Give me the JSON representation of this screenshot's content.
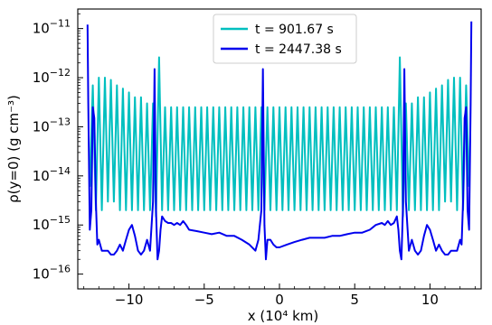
{
  "chart_data": {
    "type": "line",
    "xlabel": "x (10⁴ km)",
    "ylabel": "ρ(y=0) (g cm⁻³)",
    "xlim": [
      -13.4,
      13.4
    ],
    "ylim": [
      5e-17,
      2.5e-11
    ],
    "yscale": "log",
    "grid": false,
    "legend_position": "top-center",
    "x_ticks": [
      {
        "value": -10,
        "label": "−10"
      },
      {
        "value": -5,
        "label": "−5"
      },
      {
        "value": 0,
        "label": "0"
      },
      {
        "value": 5,
        "label": "5"
      },
      {
        "value": 10,
        "label": "10"
      }
    ],
    "y_ticks": [
      {
        "exp": -16,
        "label_base": "10",
        "label_exp": "−16"
      },
      {
        "exp": -15,
        "label_base": "10",
        "label_exp": "−15"
      },
      {
        "exp": -14,
        "label_base": "10",
        "label_exp": "−14"
      },
      {
        "exp": -13,
        "label_base": "10",
        "label_exp": "−13"
      },
      {
        "exp": -12,
        "label_base": "10",
        "label_exp": "−12"
      },
      {
        "exp": -11,
        "label_base": "10",
        "label_exp": "−11"
      }
    ],
    "series": [
      {
        "name": "t = 901.67 s",
        "color": "#00bfbf",
        "kind": "oscillating",
        "x": [
          -12.6,
          -12.4,
          -12.2,
          -12.0,
          -11.8,
          -11.6,
          -11.4,
          -11.2,
          -11.0,
          -10.8,
          -10.6,
          -10.4,
          -10.2,
          -10.0,
          -9.8,
          -9.6,
          -9.4,
          -9.2,
          -9.0,
          -8.8,
          -8.6,
          -8.4,
          -8.2,
          -8.0,
          -7.8,
          -7.6,
          -7.4,
          -7.2,
          -7.0,
          -6.8,
          -6.6,
          -6.4,
          -6.2,
          -6.0,
          -5.8,
          -5.6,
          -5.4,
          -5.2,
          -5.0,
          -4.8,
          -4.6,
          -4.4,
          -4.2,
          -4.0,
          -3.8,
          -3.6,
          -3.4,
          -3.2,
          -3.0,
          -2.8,
          -2.6,
          -2.4,
          -2.2,
          -2.0,
          -1.8,
          -1.6,
          -1.4,
          -1.2,
          -1.0,
          -0.8,
          -0.6,
          -0.4,
          -0.2,
          0.0,
          0.2,
          0.4,
          0.6,
          0.8,
          1.0,
          1.2,
          1.4,
          1.6,
          1.8,
          2.0,
          2.2,
          2.4,
          2.6,
          2.8,
          3.0,
          3.2,
          3.4,
          3.6,
          3.8,
          4.0,
          4.2,
          4.4,
          4.6,
          4.8,
          5.0,
          5.2,
          5.4,
          5.6,
          5.8,
          6.0,
          6.2,
          6.4,
          6.6,
          6.8,
          7.0,
          7.2,
          7.4,
          7.6,
          7.8,
          8.0,
          8.2,
          8.4,
          8.6,
          8.8,
          9.0,
          9.2,
          9.4,
          9.6,
          9.8,
          10.0,
          10.2,
          10.4,
          10.6,
          10.8,
          11.0,
          11.2,
          11.4,
          11.6,
          11.8,
          12.0,
          12.2,
          12.4,
          12.6
        ],
        "y": [
          6e-15,
          7e-13,
          2e-15,
          1e-12,
          2e-15,
          1e-12,
          3e-15,
          9e-13,
          3e-15,
          7e-13,
          2e-15,
          6e-13,
          2e-15,
          5e-13,
          2e-15,
          4e-13,
          2e-15,
          4e-13,
          2e-15,
          3e-13,
          2e-15,
          3e-13,
          1.5e-15,
          2.6e-12,
          2e-15,
          2.5e-13,
          2e-15,
          2.5e-13,
          2e-15,
          2.5e-13,
          2e-15,
          2.5e-13,
          2e-15,
          2.5e-13,
          2e-15,
          2.5e-13,
          2e-15,
          2.5e-13,
          2e-15,
          2.5e-13,
          2e-15,
          2.5e-13,
          2e-15,
          2.5e-13,
          2e-15,
          2.5e-13,
          2e-15,
          2.5e-13,
          2e-15,
          2.5e-13,
          2e-15,
          2.5e-13,
          2e-15,
          2.5e-13,
          2e-15,
          2.5e-13,
          2e-15,
          2.5e-13,
          2e-15,
          2.5e-13,
          2e-15,
          2.5e-13,
          2e-15,
          2.5e-13,
          2e-15,
          2.5e-13,
          2e-15,
          2.5e-13,
          2e-15,
          2.5e-13,
          2e-15,
          2.5e-13,
          2e-15,
          2.5e-13,
          2e-15,
          2.5e-13,
          2e-15,
          2.5e-13,
          2e-15,
          2.5e-13,
          2e-15,
          2.5e-13,
          2e-15,
          2.5e-13,
          2e-15,
          2.5e-13,
          2e-15,
          2.5e-13,
          2e-15,
          2.5e-13,
          2e-15,
          2.5e-13,
          2e-15,
          2.5e-13,
          2e-15,
          2.5e-13,
          2e-15,
          2.5e-13,
          2e-15,
          2.5e-13,
          2e-15,
          2.5e-13,
          2e-15,
          2.6e-12,
          1.5e-15,
          3e-13,
          2e-15,
          3e-13,
          2e-15,
          4e-13,
          2e-15,
          4e-13,
          2e-15,
          5e-13,
          2e-15,
          6e-13,
          2e-15,
          7e-13,
          3e-15,
          9e-13,
          3e-15,
          1e-12,
          2e-15,
          1e-12,
          2e-15,
          7e-13,
          6e-15
        ]
      },
      {
        "name": "t = 2447.38 s",
        "color": "#0000ee",
        "kind": "smooth",
        "x": [
          -12.75,
          -12.7,
          -12.6,
          -12.5,
          -12.4,
          -12.3,
          -12.2,
          -12.1,
          -12.0,
          -11.8,
          -11.6,
          -11.4,
          -11.2,
          -11.0,
          -10.8,
          -10.6,
          -10.4,
          -10.2,
          -10.0,
          -9.8,
          -9.6,
          -9.4,
          -9.2,
          -9.0,
          -8.8,
          -8.6,
          -8.4,
          -8.3,
          -8.2,
          -8.1,
          -8.0,
          -7.9,
          -7.8,
          -7.6,
          -7.4,
          -7.2,
          -7.0,
          -6.8,
          -6.6,
          -6.4,
          -6.2,
          -6.0,
          -5.5,
          -5.0,
          -4.5,
          -4.0,
          -3.5,
          -3.0,
          -2.5,
          -2.0,
          -1.6,
          -1.4,
          -1.2,
          -1.1,
          -1.0,
          -0.9,
          -0.8,
          -0.6,
          -0.4,
          -0.2,
          0.0,
          0.5,
          1.0,
          1.5,
          2.0,
          2.5,
          3.0,
          3.5,
          4.0,
          4.5,
          5.0,
          5.5,
          6.0,
          6.4,
          6.8,
          7.0,
          7.2,
          7.4,
          7.6,
          7.8,
          7.9,
          8.0,
          8.1,
          8.2,
          8.3,
          8.4,
          8.6,
          8.8,
          9.0,
          9.2,
          9.4,
          9.6,
          9.8,
          10.0,
          10.2,
          10.4,
          10.6,
          10.8,
          11.0,
          11.2,
          11.4,
          11.6,
          11.8,
          12.0,
          12.1,
          12.2,
          12.3,
          12.4,
          12.5,
          12.6,
          12.7,
          12.75
        ],
        "y": [
          1.2e-11,
          3e-13,
          8e-16,
          2e-15,
          2.5e-13,
          1.5e-13,
          3e-15,
          4e-16,
          5e-16,
          3e-16,
          3e-16,
          3e-16,
          2.5e-16,
          2.5e-16,
          3e-16,
          4e-16,
          3e-16,
          5e-16,
          8e-16,
          1e-15,
          6e-16,
          3e-16,
          2.5e-16,
          3e-16,
          5e-16,
          3e-16,
          3e-15,
          1.5e-12,
          2e-15,
          2e-16,
          3e-16,
          8e-16,
          1.5e-15,
          1.2e-15,
          1.1e-15,
          1.1e-15,
          1e-15,
          1.1e-15,
          1e-15,
          1.2e-15,
          1e-15,
          8e-16,
          7.5e-16,
          7e-16,
          6.5e-16,
          7e-16,
          6e-16,
          6e-16,
          5e-16,
          4e-16,
          3e-16,
          5e-16,
          2e-15,
          1.5e-12,
          1e-15,
          2e-16,
          5e-16,
          5e-16,
          4e-16,
          3.5e-16,
          3.5e-16,
          4e-16,
          4.5e-16,
          5e-16,
          5.5e-16,
          5.5e-16,
          5.5e-16,
          6e-16,
          6e-16,
          6.5e-16,
          7e-16,
          7e-16,
          8e-16,
          1e-15,
          1.1e-15,
          1e-15,
          1.2e-15,
          1e-15,
          1.1e-15,
          1.5e-15,
          8e-16,
          3e-16,
          2e-16,
          2e-15,
          1.5e-12,
          3e-15,
          3e-16,
          5e-16,
          3e-16,
          2.5e-16,
          3e-16,
          6e-16,
          1e-15,
          8e-16,
          5e-16,
          3e-16,
          4e-16,
          3e-16,
          2.5e-16,
          2.5e-16,
          3e-16,
          3e-16,
          3e-16,
          5e-16,
          4e-16,
          3e-15,
          1.5e-13,
          2.5e-13,
          2e-15,
          8e-16,
          3e-13,
          1.4e-11
        ]
      }
    ]
  }
}
